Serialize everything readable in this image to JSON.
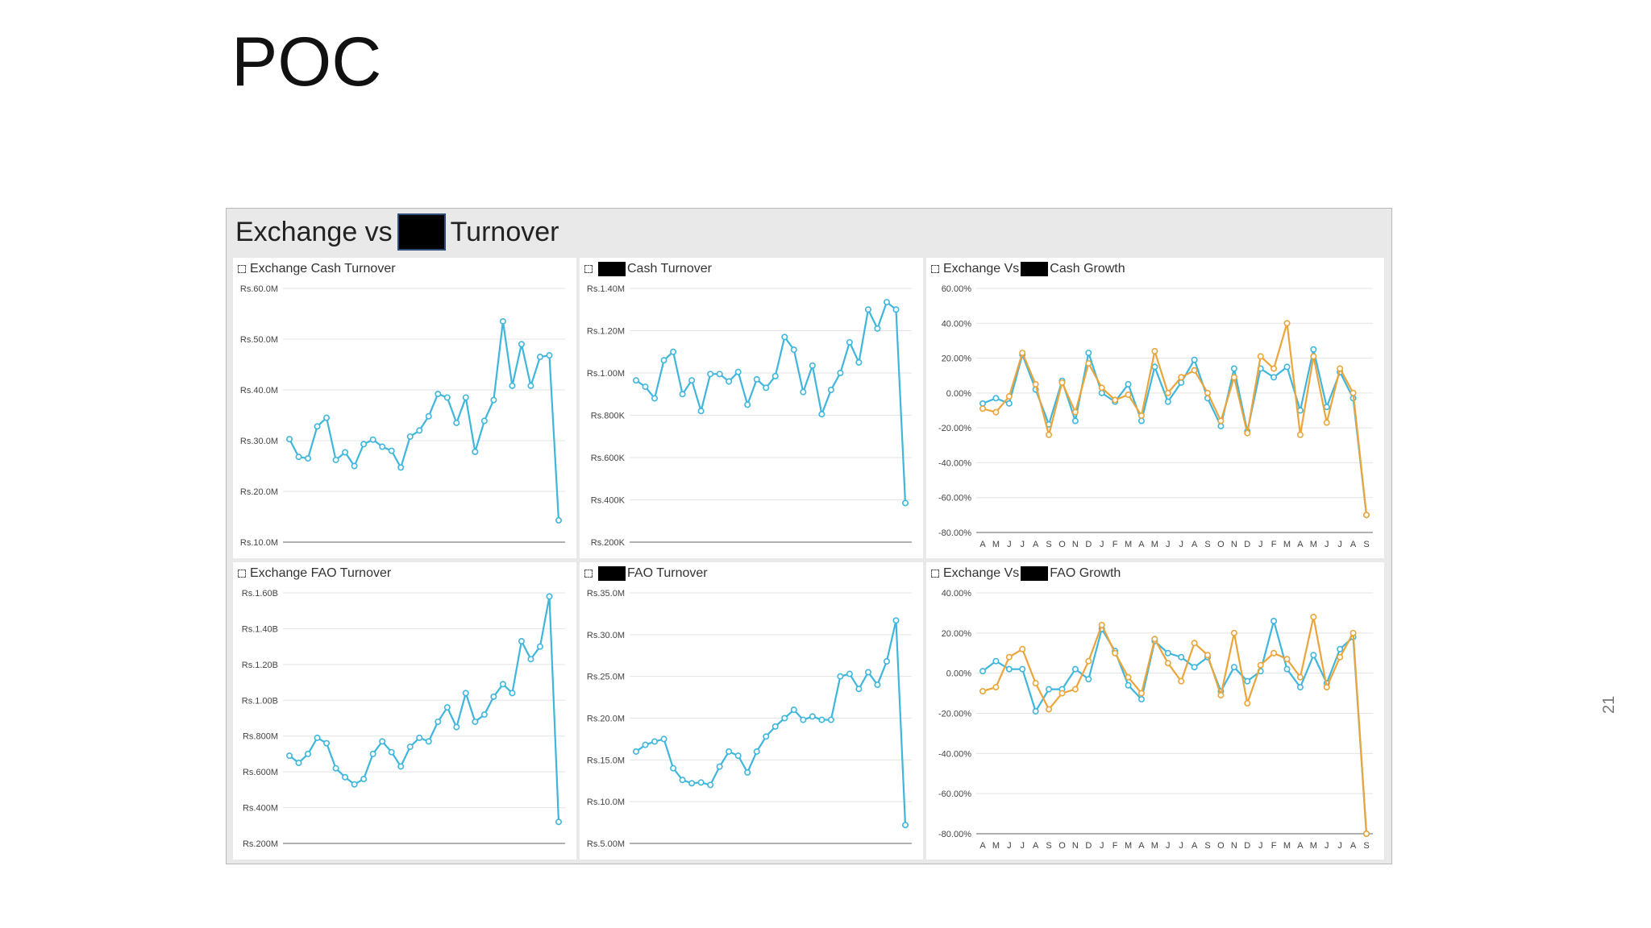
{
  "slide": {
    "title": "POC",
    "number": "21"
  },
  "dashboard": {
    "title_left": "Exchange vs",
    "title_right": "Turnover"
  },
  "colors": {
    "blue": "#3fb6dc",
    "orange": "#eba53a",
    "grid": "#e3e3e3",
    "axis": "#999999"
  },
  "panels": [
    {
      "title_before": "Exchange Cash Turnover",
      "title_after": "",
      "redacted": false
    },
    {
      "title_before": "",
      "title_after": "Cash Turnover",
      "redacted": true
    },
    {
      "title_before": "Exchange Vs",
      "title_after": "Cash Growth",
      "redacted": true
    },
    {
      "title_before": "Exchange FAO Turnover",
      "title_after": "",
      "redacted": false
    },
    {
      "title_before": "",
      "title_after": "FAO Turnover",
      "redacted": true
    },
    {
      "title_before": "Exchange Vs",
      "title_after": "FAO Growth",
      "redacted": true
    }
  ],
  "chart_data": [
    {
      "type": "line",
      "title": "Exchange Cash Turnover",
      "ylim": [
        10,
        60
      ],
      "yticks": [
        60,
        50,
        40,
        30,
        20,
        10
      ],
      "ytick_labels": [
        "Rs.60.0M",
        "Rs.50.0M",
        "Rs.40.0M",
        "Rs.30.0M",
        "Rs.20.0M",
        "Rs.10.0M"
      ],
      "series": [
        {
          "color": "#3fb6dc",
          "values": [
            30.3,
            26.8,
            26.5,
            32.8,
            34.5,
            26.2,
            27.7,
            25.0,
            29.3,
            30.2,
            28.8,
            28.0,
            24.7,
            30.8,
            32.0,
            34.8,
            39.2,
            38.5,
            33.5,
            38.5,
            27.8,
            33.9,
            38.0,
            53.5,
            40.8,
            49.0,
            40.8,
            46.5,
            46.8,
            14.3
          ]
        }
      ]
    },
    {
      "type": "line",
      "title": "Cash Turnover",
      "ylim": [
        200,
        1400
      ],
      "yticks": [
        1400,
        1200,
        1000,
        800,
        600,
        400,
        200
      ],
      "ytick_labels": [
        "Rs.1.40M",
        "Rs.1.20M",
        "Rs.1.00M",
        "Rs.800K",
        "Rs.600K",
        "Rs.400K",
        "Rs.200K"
      ],
      "series": [
        {
          "color": "#3fb6dc",
          "values": [
            965,
            935,
            880,
            1060,
            1100,
            900,
            965,
            820,
            995,
            995,
            960,
            1005,
            850,
            970,
            930,
            985,
            1170,
            1110,
            910,
            1035,
            805,
            920,
            1000,
            1145,
            1050,
            1300,
            1210,
            1335,
            1300,
            385
          ]
        }
      ]
    },
    {
      "type": "line",
      "title": "Cash Growth",
      "ylim": [
        -80,
        60
      ],
      "yticks": [
        60,
        40,
        20,
        0,
        -20,
        -40,
        -60,
        -80
      ],
      "ytick_labels": [
        "60.00%",
        "40.00%",
        "20.00%",
        "0.00%",
        "-20.00%",
        "-40.00%",
        "-60.00%",
        "-80.00%"
      ],
      "categories": [
        "A",
        "M",
        "J",
        "J",
        "A",
        "S",
        "O",
        "N",
        "D",
        "J",
        "F",
        "M",
        "A",
        "M",
        "J",
        "J",
        "A",
        "S",
        "O",
        "N",
        "D",
        "J",
        "F",
        "M",
        "A",
        "M",
        "J",
        "J",
        "A",
        "S"
      ],
      "series": [
        {
          "color": "#3fb6dc",
          "values": [
            -6,
            -3,
            -6,
            22,
            2,
            -18,
            7,
            -16,
            23,
            0,
            -5,
            5,
            -16,
            15,
            -5,
            6,
            19,
            -3,
            -19,
            14,
            -22,
            14,
            9,
            15,
            -10,
            25,
            -8,
            12,
            -3,
            -70
          ]
        },
        {
          "color": "#eba53a",
          "values": [
            -9,
            -11,
            -2,
            23,
            5,
            -24,
            6,
            -11,
            17,
            3,
            -4,
            -1,
            -13,
            24,
            0,
            9,
            13,
            0,
            -16,
            9,
            -23,
            21,
            14,
            40,
            -24,
            21,
            -17,
            14,
            0,
            -70
          ]
        }
      ]
    },
    {
      "type": "line",
      "title": "Exchange FAO Turnover",
      "ylim": [
        200,
        1600
      ],
      "yticks": [
        1600,
        1400,
        1200,
        1000,
        800,
        600,
        400,
        200
      ],
      "ytick_labels": [
        "Rs.1.60B",
        "Rs.1.40B",
        "Rs.1.20B",
        "Rs.1.00B",
        "Rs.800M",
        "Rs.600M",
        "Rs.400M",
        "Rs.200M"
      ],
      "series": [
        {
          "color": "#3fb6dc",
          "values": [
            690,
            650,
            700,
            790,
            760,
            620,
            570,
            530,
            560,
            700,
            770,
            710,
            630,
            740,
            790,
            770,
            880,
            960,
            850,
            1040,
            880,
            920,
            1020,
            1090,
            1040,
            1330,
            1230,
            1300,
            1580,
            320
          ]
        }
      ]
    },
    {
      "type": "line",
      "title": "FAO Turnover",
      "ylim": [
        5,
        35
      ],
      "yticks": [
        35,
        30,
        25,
        20,
        15,
        10,
        5
      ],
      "ytick_labels": [
        "Rs.35.0M",
        "Rs.30.0M",
        "Rs.25.0M",
        "Rs.20.0M",
        "Rs.15.0M",
        "Rs.10.0M",
        "Rs.5.00M"
      ],
      "series": [
        {
          "color": "#3fb6dc",
          "values": [
            16.0,
            16.8,
            17.2,
            17.5,
            14.0,
            12.6,
            12.2,
            12.3,
            12.0,
            14.2,
            16.0,
            15.5,
            13.5,
            16.0,
            17.8,
            19.0,
            20.0,
            21.0,
            19.8,
            20.2,
            19.8,
            19.8,
            25.0,
            25.3,
            23.5,
            25.5,
            24.0,
            26.8,
            31.7,
            7.2
          ]
        }
      ]
    },
    {
      "type": "line",
      "title": "FAO Growth",
      "ylim": [
        -80,
        40
      ],
      "yticks": [
        40,
        20,
        0,
        -20,
        -40,
        -60,
        -80
      ],
      "ytick_labels": [
        "40.00%",
        "20.00%",
        "0.00%",
        "-20.00%",
        "-40.00%",
        "-60.00%",
        "-80.00%"
      ],
      "categories": [
        "A",
        "M",
        "J",
        "J",
        "A",
        "S",
        "O",
        "N",
        "D",
        "J",
        "F",
        "M",
        "A",
        "M",
        "J",
        "J",
        "A",
        "S",
        "O",
        "N",
        "D",
        "J",
        "F",
        "M",
        "A",
        "M",
        "J",
        "J",
        "A",
        "S"
      ],
      "series": [
        {
          "color": "#3fb6dc",
          "values": [
            1,
            6,
            2,
            2,
            -19,
            -8,
            -8,
            2,
            -3,
            22,
            11,
            -6,
            -13,
            16,
            10,
            8,
            3,
            8,
            -9,
            3,
            -4,
            1,
            26,
            2,
            -7,
            9,
            -5,
            12,
            18,
            -80
          ]
        },
        {
          "color": "#eba53a",
          "values": [
            -9,
            -7,
            8,
            12,
            -5,
            -18,
            -10,
            -8,
            6,
            24,
            10,
            -2,
            -10,
            17,
            5,
            -4,
            15,
            9,
            -11,
            20,
            -15,
            4,
            10,
            7,
            -2,
            28,
            -7,
            8,
            20,
            -80
          ]
        }
      ]
    }
  ]
}
